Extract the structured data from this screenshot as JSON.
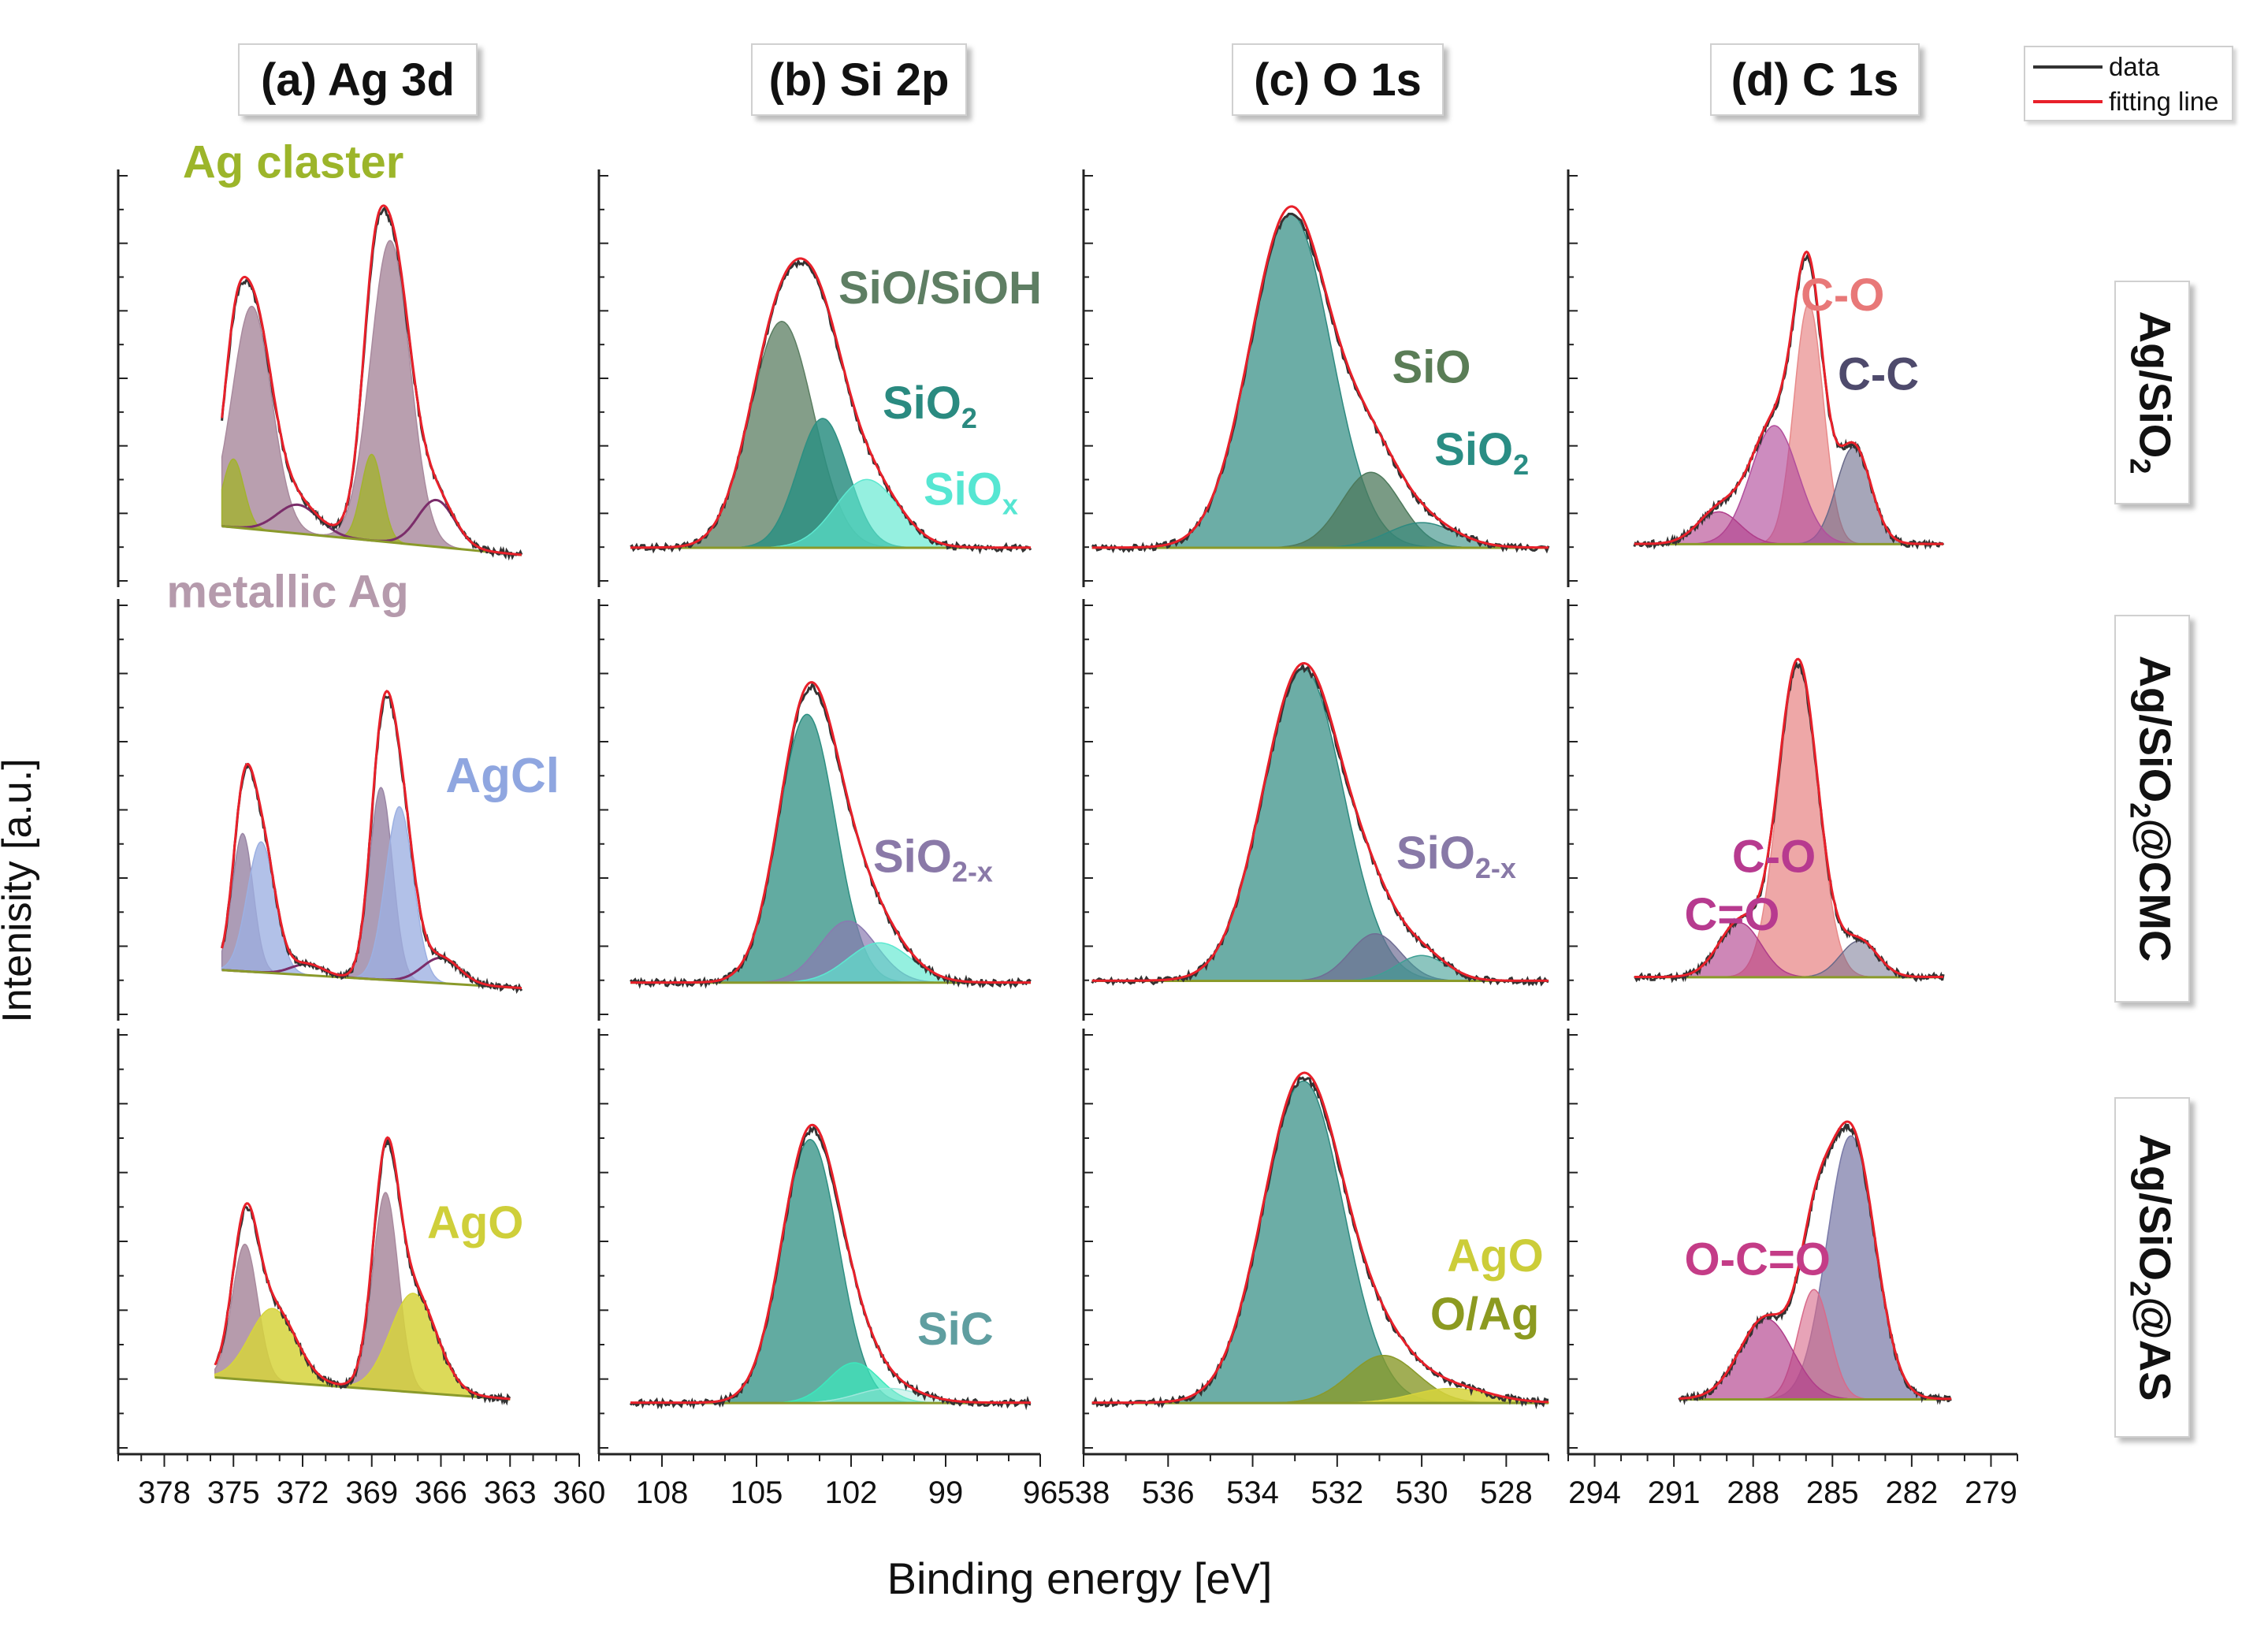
{
  "figure": {
    "ylabel": "Intenisity [a.u.]",
    "xlabel": "Binding energy [eV]",
    "legend": [
      {
        "label": "data",
        "color": "#333333"
      },
      {
        "label": "fitting line",
        "color": "#e8202a"
      }
    ],
    "row_labels": [
      {
        "main": "Ag/SiO",
        "sub": "2",
        "tail": ""
      },
      {
        "main": "Ag/SiO",
        "sub": "2",
        "tail": "@CMC"
      },
      {
        "main": "Ag/SiO",
        "sub": "2",
        "tail": "@AS"
      }
    ]
  },
  "chart_data": [
    {
      "type": "area",
      "panel": "Ag 3d",
      "title": "(a) Ag 3d",
      "xlim": [
        380,
        360
      ],
      "ticks": [
        378,
        375,
        372,
        369,
        366,
        363,
        360
      ],
      "rows": [
        {
          "label": "Ag/SiO2",
          "baseline": [
            [
              375.5,
              0.1
            ],
            [
              362.5,
              0.02
            ]
          ],
          "components": [
            {
              "name": "metallic Ag",
              "color": "#a98a9e",
              "alpha": 0.82,
              "peaks": [
                [
                  374.2,
                  0.62,
                  0.85
                ],
                [
                  368.2,
                  0.84,
                  0.85
                ]
              ]
            },
            {
              "name": "Ag claster",
              "color": "#a3b230",
              "alpha": 0.8,
              "peaks": [
                [
                  375.0,
                  0.19,
                  0.45
                ],
                [
                  369.0,
                  0.24,
                  0.45
                ]
              ]
            },
            {
              "name": "satellite",
              "color": "#7b2d6a",
              "alpha": 0.0,
              "line": true,
              "peaks": [
                [
                  372.2,
                  0.08,
                  0.9
                ],
                [
                  366.2,
                  0.13,
                  0.8
                ]
              ]
            }
          ],
          "labels": [
            {
              "text": "Ag claster",
              "color": "#9cb52a",
              "x": 377.2,
              "y": 1.07,
              "size": 58,
              "anchor": "start"
            }
          ]
        },
        {
          "label": "Ag/SiO2@CMC",
          "baseline": [
            [
              375.5,
              0.07
            ],
            [
              362.5,
              0.02
            ]
          ],
          "components": [
            {
              "name": "metallic Ag",
              "color": "#9a86a6",
              "alpha": 0.82,
              "peaks": [
                [
                  374.6,
                  0.38,
                  0.45
                ],
                [
                  368.6,
                  0.53,
                  0.5
                ]
              ]
            },
            {
              "name": "AgCl",
              "color": "#9cb0e2",
              "alpha": 0.78,
              "peaks": [
                [
                  373.8,
                  0.36,
                  0.6
                ],
                [
                  367.8,
                  0.48,
                  0.6
                ]
              ]
            },
            {
              "name": "satellite",
              "color": "#7b2d6a",
              "alpha": 0.0,
              "line": true,
              "peaks": [
                [
                  371.8,
                  0.03,
                  0.7
                ],
                [
                  366.0,
                  0.07,
                  0.8
                ]
              ]
            }
          ],
          "labels": [
            {
              "text": "metallic Ag",
              "color": "#b59aac",
              "x": 377.9,
              "y": 1.07,
              "size": 58,
              "anchor": "start"
            },
            {
              "text": "AgCl",
              "color": "#8fa6e0",
              "x": 365.8,
              "y": 0.56,
              "size": 62,
              "anchor": "start"
            }
          ]
        },
        {
          "label": "Ag/SiO2@AS",
          "baseline": [
            [
              375.8,
              0.14
            ],
            [
              363.0,
              0.08
            ]
          ],
          "components": [
            {
              "name": "metallic Ag",
              "color": "#a98a9e",
              "alpha": 0.85,
              "peaks": [
                [
                  374.5,
                  0.37,
                  0.55
                ],
                [
                  368.4,
                  0.54,
                  0.55
                ]
              ]
            },
            {
              "name": "AgO",
              "color": "#d6d43c",
              "alpha": 0.85,
              "peaks": [
                [
                  373.3,
                  0.2,
                  1.0
                ],
                [
                  367.2,
                  0.27,
                  1.0
                ]
              ]
            }
          ],
          "labels": [
            {
              "text": "AgO",
              "color": "#cfcf3a",
              "x": 366.6,
              "y": 0.52,
              "size": 58,
              "anchor": "start"
            }
          ]
        }
      ]
    },
    {
      "type": "area",
      "panel": "Si 2p",
      "title": "(b) Si 2p",
      "xlim": [
        110,
        96
      ],
      "ticks": [
        108,
        105,
        102,
        99,
        96
      ],
      "rows": [
        {
          "label": "Ag/SiO2",
          "baseline": [
            [
              109.0,
              0.04
            ],
            [
              96.3,
              0.04
            ]
          ],
          "components": [
            {
              "name": "SiO/SiOH",
              "color": "#5b7e62",
              "alpha": 0.75,
              "peaks": [
                [
                  104.2,
                  0.63,
                  1.0
                ]
              ]
            },
            {
              "name": "SiO2",
              "color": "#2d8f82",
              "alpha": 0.85,
              "peaks": [
                [
                  102.9,
                  0.36,
                  0.8
                ]
              ]
            },
            {
              "name": "SiOx",
              "color": "#5ce8d0",
              "alpha": 0.65,
              "peaks": [
                [
                  101.5,
                  0.19,
                  1.0
                ]
              ]
            }
          ],
          "labels": [
            {
              "text": "SiO/SiOH",
              "color": "#5e7e63",
              "x": 102.4,
              "y": 0.72,
              "size": 58,
              "anchor": "start"
            },
            {
              "text": "SiO",
              "sub": "2",
              "color": "#2a8a80",
              "x": 101.0,
              "y": 0.4,
              "size": 58,
              "anchor": "start"
            },
            {
              "text": "SiO",
              "sub": "x",
              "color": "#56e6d2",
              "x": 99.7,
              "y": 0.16,
              "size": 58,
              "anchor": "start"
            }
          ]
        },
        {
          "label": "Ag/SiO2@CMC",
          "baseline": [
            [
              109.0,
              0.035
            ],
            [
              96.3,
              0.035
            ]
          ],
          "components": [
            {
              "name": "SiO2",
              "color": "#2d8f82",
              "alpha": 0.75,
              "peaks": [
                [
                  103.4,
                  0.74,
                  0.9
                ]
              ]
            },
            {
              "name": "SiO2-x",
              "color": "#8a7ab0",
              "alpha": 0.7,
              "peaks": [
                [
                  102.1,
                  0.17,
                  0.9
                ]
              ]
            },
            {
              "name": "SiOx",
              "color": "#5ce8d0",
              "alpha": 0.65,
              "peaks": [
                [
                  101.1,
                  0.11,
                  1.0
                ]
              ]
            }
          ],
          "labels": [
            {
              "text": "SiO",
              "sub": "2-x",
              "color": "#8a79a8",
              "x": 101.3,
              "y": 0.34,
              "size": 58,
              "anchor": "start"
            }
          ]
        },
        {
          "label": "Ag/SiO2@AS",
          "baseline": [
            [
              109.0,
              0.07
            ],
            [
              96.3,
              0.07
            ]
          ],
          "components": [
            {
              "name": "SiO2",
              "color": "#2d8f82",
              "alpha": 0.75,
              "peaks": [
                [
                  103.3,
                  0.72,
                  0.9
                ]
              ]
            },
            {
              "name": "SiC",
              "color": "#3ce8bc",
              "alpha": 0.7,
              "peaks": [
                [
                  101.9,
                  0.11,
                  0.8
                ]
              ]
            },
            {
              "name": "tail",
              "color": "#9fe8dc",
              "alpha": 0.45,
              "peaks": [
                [
                  100.8,
                  0.04,
                  1.0
                ]
              ]
            }
          ],
          "labels": [
            {
              "text": "SiC",
              "color": "#5f9ea0",
              "x": 99.9,
              "y": 0.23,
              "size": 58,
              "anchor": "start"
            }
          ]
        }
      ]
    },
    {
      "type": "area",
      "panel": "O 1s",
      "title": "(c) O 1s",
      "xlim": [
        538,
        527
      ],
      "ticks": [
        538,
        536,
        534,
        532,
        530,
        528
      ],
      "rows": [
        {
          "label": "Ag/SiO2",
          "baseline": [
            [
              537.8,
              0.04
            ],
            [
              527.0,
              0.04
            ]
          ],
          "components": [
            {
              "name": "SiO",
              "color": "#2e8a80",
              "alpha": 0.7,
              "peaks": [
                [
                  533.1,
                  0.93,
                  0.95
                ]
              ]
            },
            {
              "name": "SiO2 (lower)",
              "color": "#4e7a5c",
              "alpha": 0.75,
              "peaks": [
                [
                  531.2,
                  0.21,
                  0.7
                ]
              ]
            },
            {
              "name": "SiO2",
              "color": "#2e8a80",
              "alpha": 0.6,
              "peaks": [
                [
                  530.0,
                  0.07,
                  0.8
                ]
              ]
            }
          ],
          "labels": [
            {
              "text": "SiO",
              "color": "#5a7d56",
              "x": 530.7,
              "y": 0.5,
              "size": 58,
              "anchor": "start"
            },
            {
              "text": "SiO",
              "sub": "2",
              "color": "#2a8d84",
              "x": 529.7,
              "y": 0.27,
              "size": 58,
              "anchor": "start"
            }
          ]
        },
        {
          "label": "Ag/SiO2@CMC",
          "baseline": [
            [
              537.8,
              0.04
            ],
            [
              527.0,
              0.04
            ]
          ],
          "components": [
            {
              "name": "SiO2",
              "color": "#2e8a80",
              "alpha": 0.7,
              "peaks": [
                [
                  532.8,
                  0.86,
                  0.95
                ]
              ]
            },
            {
              "name": "SiO2-x",
              "color": "#6f6d94",
              "alpha": 0.7,
              "peaks": [
                [
                  531.1,
                  0.13,
                  0.6
                ]
              ]
            },
            {
              "name": "tail",
              "color": "#3f9f94",
              "alpha": 0.6,
              "peaks": [
                [
                  530.0,
                  0.07,
                  0.6
                ]
              ]
            }
          ],
          "labels": [
            {
              "text": "SiO",
              "sub": "2-x",
              "color": "#8879a7",
              "x": 530.6,
              "y": 0.35,
              "size": 58,
              "anchor": "start"
            }
          ]
        },
        {
          "label": "Ag/SiO2@AS",
          "baseline": [
            [
              537.8,
              0.07
            ],
            [
              527.0,
              0.07
            ]
          ],
          "components": [
            {
              "name": "SiO2",
              "color": "#2e8a80",
              "alpha": 0.7,
              "peaks": [
                [
                  532.8,
                  0.88,
                  0.95
                ]
              ]
            },
            {
              "name": "O/Ag",
              "color": "#8a9a2a",
              "alpha": 0.8,
              "peaks": [
                [
                  530.9,
                  0.13,
                  0.8
                ]
              ]
            },
            {
              "name": "AgO",
              "color": "#d6d43c",
              "alpha": 0.85,
              "peaks": [
                [
                  529.3,
                  0.04,
                  0.9
                ]
              ]
            }
          ],
          "labels": [
            {
              "text": "AgO",
              "color": "#cccd38",
              "x": 529.4,
              "y": 0.43,
              "size": 58,
              "anchor": "start"
            },
            {
              "text": "O/Ag",
              "color": "#8c9a20",
              "x": 529.8,
              "y": 0.27,
              "size": 58,
              "anchor": "start"
            }
          ]
        }
      ]
    },
    {
      "type": "area",
      "panel": "C 1s",
      "title": "(d) C 1s",
      "xlim": [
        295,
        278
      ],
      "ticks": [
        294,
        291,
        288,
        285,
        282,
        279
      ],
      "rows": [
        {
          "label": "Ag/SiO2",
          "baseline": [
            [
              292.5,
              0.05
            ],
            [
              280.8,
              0.05
            ]
          ],
          "components": [
            {
              "name": "C-O",
              "color": "#e88a8a",
              "alpha": 0.7,
              "peaks": [
                [
                  285.9,
                  0.67,
                  0.55
                ]
              ]
            },
            {
              "name": "C-C",
              "color": "#6a6a8a",
              "alpha": 0.6,
              "peaks": [
                [
                  284.2,
                  0.27,
                  0.65
                ]
              ]
            },
            {
              "name": "C=O",
              "color": "#b24f9c",
              "alpha": 0.65,
              "peaks": [
                [
                  287.2,
                  0.33,
                  0.9
                ]
              ]
            },
            {
              "name": "O-C=O",
              "color": "#b03d8a",
              "alpha": 0.6,
              "peaks": [
                [
                  289.3,
                  0.09,
                  0.8
                ]
              ]
            }
          ],
          "labels": [
            {
              "text": "C-O",
              "color": "#e87878",
              "x": 286.2,
              "y": 0.7,
              "size": 58,
              "anchor": "start"
            },
            {
              "text": "C-C",
              "color": "#4e4a6c",
              "x": 284.8,
              "y": 0.48,
              "size": 58,
              "anchor": "start"
            }
          ]
        },
        {
          "label": "Ag/SiO2@CMC",
          "baseline": [
            [
              292.5,
              0.05
            ],
            [
              280.8,
              0.05
            ]
          ],
          "components": [
            {
              "name": "C-O",
              "color": "#e88a8a",
              "alpha": 0.75,
              "peaks": [
                [
                  286.3,
                  0.86,
                  0.75
                ]
              ]
            },
            {
              "name": "C=O",
              "color": "#b03d8a",
              "alpha": 0.62,
              "peaks": [
                [
                  288.5,
                  0.15,
                  0.8
                ]
              ]
            },
            {
              "name": "C-C",
              "color": "#6a6a8a",
              "alpha": 0.5,
              "peaks": [
                [
                  284.0,
                  0.1,
                  0.7
                ]
              ]
            }
          ],
          "labels": [
            {
              "text": "C-O",
              "color": "#b73a8f",
              "x": 288.8,
              "y": 0.34,
              "size": 58,
              "anchor": "start"
            },
            {
              "text": "C=O",
              "color": "#b73a8f",
              "x": 290.6,
              "y": 0.18,
              "size": 58,
              "anchor": "start"
            }
          ]
        },
        {
          "label": "Ag/SiO2@AS",
          "baseline": [
            [
              290.8,
              0.08
            ],
            [
              280.5,
              0.08
            ]
          ],
          "components": [
            {
              "name": "C-C",
              "color": "#7a7aa8",
              "alpha": 0.72,
              "peaks": [
                [
                  284.3,
                  0.72,
                  0.9
                ]
              ]
            },
            {
              "name": "C-O",
              "color": "#d86a8a",
              "alpha": 0.62,
              "peaks": [
                [
                  285.7,
                  0.3,
                  0.6
                ]
              ]
            },
            {
              "name": "O-C=O",
              "color": "#b03d8a",
              "alpha": 0.65,
              "peaks": [
                [
                  287.5,
                  0.22,
                  1.0
                ]
              ]
            }
          ],
          "labels": [
            {
              "text": "O-C=O",
              "color": "#c43c87",
              "x": 290.6,
              "y": 0.42,
              "size": 58,
              "anchor": "start"
            }
          ]
        }
      ]
    }
  ]
}
